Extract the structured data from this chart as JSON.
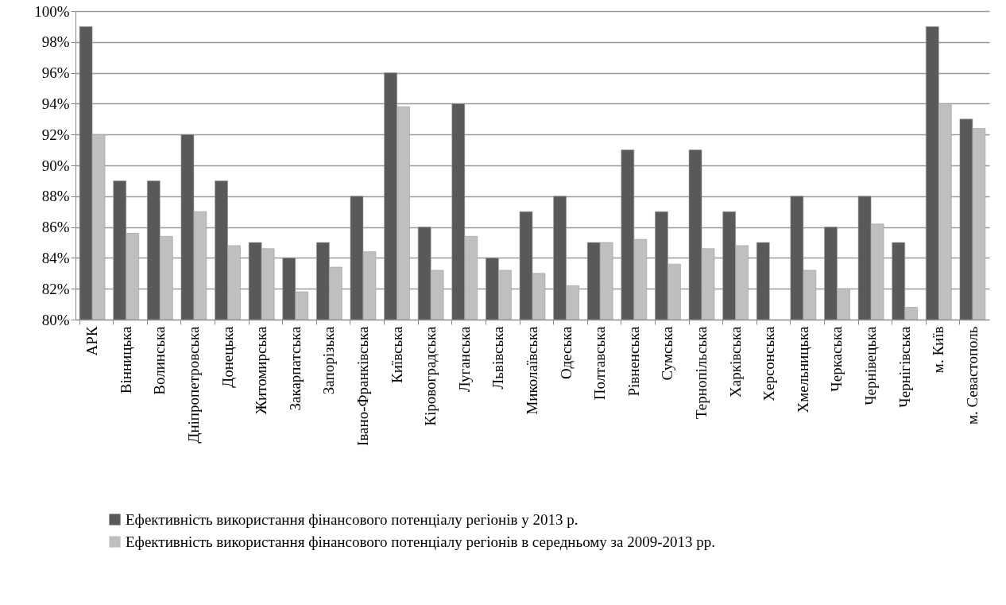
{
  "chart_data": {
    "type": "bar",
    "categories": [
      "АРК",
      "Вінницька",
      "Волинська",
      "Дніпропетровська",
      "Донецька",
      "Житомирська",
      "Закарпатська",
      "Запорізька",
      "Івано-Франківська",
      "Київська",
      "Кіровоградська",
      "Луганська",
      "Львівська",
      "Миколаївська",
      "Одеська",
      "Полтавська",
      "Рівненська",
      "Сумська",
      "Тернопільська",
      "Харківська",
      "Херсонська",
      "Хмельницька",
      "Черкаська",
      "Чернівецька",
      "Чернігівська",
      "м. Київ",
      "м. Севастополь"
    ],
    "series": [
      {
        "name": "Ефективність використання фінансового потенціалу регіонів у 2013 р.",
        "color": "#595959",
        "values": [
          99,
          89,
          89,
          92,
          89,
          85,
          84,
          85,
          88,
          96,
          86,
          94,
          84,
          87,
          88,
          85,
          91,
          87,
          91,
          87,
          85,
          88,
          86,
          88,
          85,
          99,
          93
        ]
      },
      {
        "name": "Ефективність використання фінансового потенціалу регіонів в середньому за 2009-2013 рр.",
        "color": "#bfbfbf",
        "values": [
          92,
          85.6,
          85.4,
          87,
          84.8,
          84.6,
          81.8,
          83.4,
          84.4,
          93.8,
          83.2,
          85.4,
          83.2,
          83,
          82.2,
          85,
          85.2,
          83.6,
          84.6,
          84.8,
          null,
          83.2,
          82,
          86.2,
          80.8,
          94,
          92.4
        ]
      }
    ],
    "ylim": [
      80,
      100
    ],
    "yticks": [
      {
        "value": 80,
        "label": "80%"
      },
      {
        "value": 82,
        "label": "82%"
      },
      {
        "value": 84,
        "label": "84%"
      },
      {
        "value": 86,
        "label": "86%"
      },
      {
        "value": 88,
        "label": "88%"
      },
      {
        "value": 90,
        "label": "90%"
      },
      {
        "value": 92,
        "label": "92%"
      },
      {
        "value": 94,
        "label": "94%"
      },
      {
        "value": 96,
        "label": "96%"
      },
      {
        "value": 98,
        "label": "98%"
      },
      {
        "value": 100,
        "label": "100%"
      }
    ],
    "grid": "y",
    "legend": "bottom left"
  }
}
